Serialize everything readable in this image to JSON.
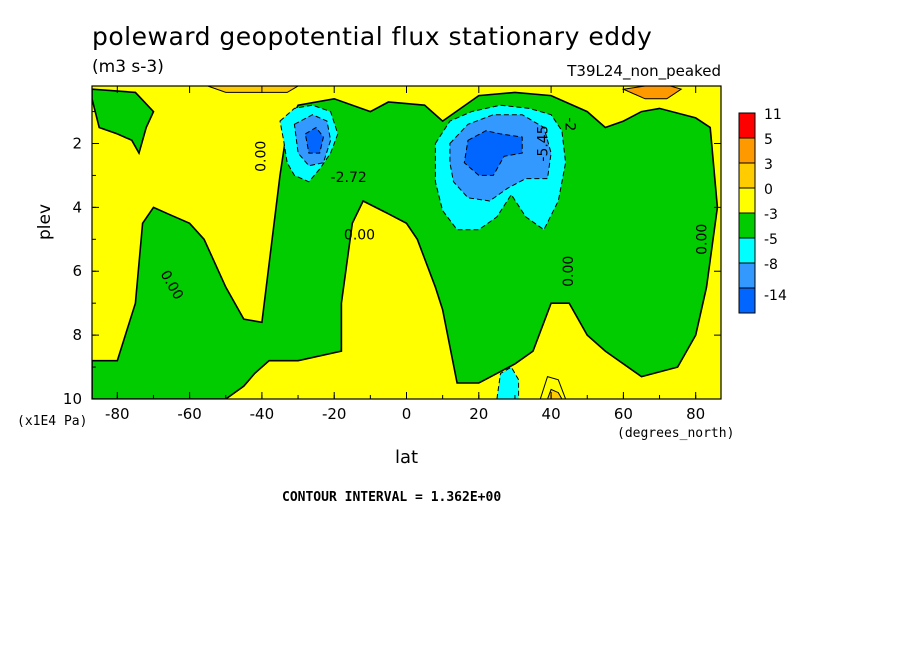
{
  "chart_data": {
    "type": "heatmap",
    "title": "poleward geopotential flux stationary eddy",
    "units": "(m3 s-3)",
    "run_label": "T39L24_non_peaked",
    "xlabel": "lat",
    "x_unit": "(degrees_north)",
    "ylabel": "plev",
    "y_unit": "(x1E4 Pa)",
    "contour_interval": "CONTOUR INTERVAL = 1.362E+00",
    "xlim": [
      -87,
      87
    ],
    "ylim": [
      10,
      0.2
    ],
    "x_ticks": [
      "-80",
      "-60",
      "-40",
      "-20",
      "0",
      "20",
      "40",
      "60",
      "80"
    ],
    "y_ticks": [
      "2",
      "4",
      "6",
      "8",
      "10"
    ],
    "contour_labels": [
      {
        "text": "0.00",
        "lat": -39,
        "plev": 2.4,
        "rotate": -90
      },
      {
        "text": "-2.72",
        "lat": -16,
        "plev": 3.2,
        "rotate": 0
      },
      {
        "text": "0.00",
        "lat": -13,
        "plev": 5.0,
        "rotate": 0
      },
      {
        "text": "0.00",
        "lat": -66,
        "plev": 6.5,
        "rotate": 60
      },
      {
        "text": "-5.45",
        "lat": 39,
        "plev": 2.0,
        "rotate": -90
      },
      {
        "text": "-2",
        "lat": 44,
        "plev": 1.4,
        "rotate": 90
      },
      {
        "text": "0.00",
        "lat": 46,
        "plev": 6.0,
        "rotate": -90
      },
      {
        "text": "0.00",
        "lat": 83,
        "plev": 5.0,
        "rotate": -90
      }
    ],
    "colorbar": {
      "levels": [
        "11",
        "5",
        "3",
        "0",
        "-3",
        "-5",
        "-8",
        "-14"
      ],
      "colors": [
        "#ff0000",
        "#ff9900",
        "#ffcc00",
        "#ffff00",
        "#00cc00",
        "#00ffff",
        "#3399ff",
        "#0066ff"
      ]
    },
    "background_fill": "#ffff00",
    "regions": [
      {
        "level": "0 to -3",
        "color": "#00cc00",
        "points": [
          [
            -80,
            8.8
          ],
          [
            -75,
            7.0
          ],
          [
            -73,
            4.5
          ],
          [
            -70,
            4.0
          ],
          [
            -66,
            4.2
          ],
          [
            -60,
            4.5
          ],
          [
            -56,
            5.0
          ],
          [
            -50,
            6.5
          ],
          [
            -45,
            7.5
          ],
          [
            -40,
            7.6
          ],
          [
            -35,
            3.0
          ],
          [
            -33,
            1.5
          ],
          [
            -30,
            0.8
          ],
          [
            -20,
            0.6
          ],
          [
            -10,
            1.0
          ],
          [
            -5,
            0.7
          ],
          [
            5,
            0.8
          ],
          [
            10,
            1.3
          ],
          [
            20,
            0.5
          ],
          [
            30,
            0.4
          ],
          [
            40,
            0.5
          ],
          [
            50,
            1.0
          ],
          [
            55,
            1.5
          ],
          [
            60,
            1.3
          ],
          [
            65,
            1.0
          ],
          [
            70,
            0.9
          ],
          [
            80,
            1.2
          ],
          [
            84,
            1.5
          ],
          [
            86,
            4.0
          ],
          [
            83,
            6.5
          ],
          [
            80,
            8.0
          ],
          [
            75,
            9.0
          ],
          [
            65,
            9.3
          ],
          [
            55,
            8.5
          ],
          [
            50,
            8.0
          ],
          [
            45,
            7.0
          ],
          [
            40,
            7.0
          ],
          [
            35,
            8.5
          ],
          [
            30,
            8.9
          ],
          [
            25,
            9.2
          ],
          [
            20,
            9.5
          ],
          [
            14,
            9.5
          ],
          [
            10,
            7.2
          ],
          [
            8,
            6.5
          ],
          [
            3,
            5.0
          ],
          [
            0,
            4.5
          ],
          [
            -5,
            4.2
          ],
          [
            -12,
            3.8
          ],
          [
            -15,
            4.5
          ],
          [
            -18,
            7.0
          ],
          [
            -18,
            8.5
          ],
          [
            -30,
            8.8
          ],
          [
            -38,
            8.8
          ],
          [
            -42,
            9.2
          ],
          [
            -45,
            9.6
          ],
          [
            -50,
            10
          ],
          [
            -60,
            10
          ],
          [
            -70,
            10
          ],
          [
            -80,
            10
          ],
          [
            -87,
            10
          ],
          [
            -87,
            8.8
          ]
        ]
      },
      {
        "level": "0 to -3",
        "color": "#00cc00",
        "points": [
          [
            -87,
            0.6
          ],
          [
            -85,
            1.5
          ],
          [
            -80,
            1.7
          ],
          [
            -76,
            1.9
          ],
          [
            -74,
            2.3
          ],
          [
            -72,
            1.5
          ],
          [
            -70,
            1.0
          ],
          [
            -75,
            0.4
          ],
          [
            -87,
            0.3
          ]
        ]
      },
      {
        "level": "-3 to -5",
        "color": "#00ffff",
        "points": [
          [
            -35,
            1.3
          ],
          [
            -31,
            0.9
          ],
          [
            -26,
            0.8
          ],
          [
            -21,
            1.0
          ],
          [
            -19,
            1.7
          ],
          [
            -21,
            2.3
          ],
          [
            -24,
            2.8
          ],
          [
            -27,
            3.2
          ],
          [
            -31,
            3.0
          ],
          [
            -33,
            2.6
          ],
          [
            -34,
            1.9
          ]
        ]
      },
      {
        "level": "-5 to -8",
        "color": "#3399ff",
        "points": [
          [
            -31,
            1.4
          ],
          [
            -26,
            1.1
          ],
          [
            -22,
            1.3
          ],
          [
            -21,
            1.9
          ],
          [
            -23,
            2.6
          ],
          [
            -27,
            2.7
          ],
          [
            -30,
            2.3
          ]
        ]
      },
      {
        "level": "-8 to -14",
        "color": "#0066ff",
        "points": [
          [
            -28,
            1.7
          ],
          [
            -25,
            1.5
          ],
          [
            -23,
            1.8
          ],
          [
            -24,
            2.3
          ],
          [
            -27,
            2.3
          ]
        ]
      },
      {
        "level": "-3 to -5",
        "color": "#00ffff",
        "points": [
          [
            8,
            2.0
          ],
          [
            12,
            1.3
          ],
          [
            18,
            1.0
          ],
          [
            26,
            0.8
          ],
          [
            34,
            0.9
          ],
          [
            40,
            1.1
          ],
          [
            43,
            1.6
          ],
          [
            44,
            2.6
          ],
          [
            42,
            3.8
          ],
          [
            38,
            4.7
          ],
          [
            33,
            4.3
          ],
          [
            29,
            3.6
          ],
          [
            25,
            4.3
          ],
          [
            20,
            4.7
          ],
          [
            14,
            4.7
          ],
          [
            10,
            4.1
          ],
          [
            8,
            3.2
          ]
        ]
      },
      {
        "level": "-5 to -8",
        "color": "#3399ff",
        "points": [
          [
            12,
            2.0
          ],
          [
            17,
            1.4
          ],
          [
            24,
            1.1
          ],
          [
            32,
            1.1
          ],
          [
            38,
            1.5
          ],
          [
            40,
            2.3
          ],
          [
            39,
            3.1
          ],
          [
            33,
            3.1
          ],
          [
            28,
            3.4
          ],
          [
            23,
            3.8
          ],
          [
            17,
            3.7
          ],
          [
            13,
            3.2
          ],
          [
            12,
            2.6
          ]
        ]
      },
      {
        "level": "-8 to -14",
        "color": "#0066ff",
        "points": [
          [
            17,
            1.9
          ],
          [
            22,
            1.6
          ],
          [
            26,
            1.7
          ],
          [
            32,
            1.8
          ],
          [
            32,
            2.3
          ],
          [
            27,
            2.4
          ],
          [
            24,
            3.0
          ],
          [
            20,
            3.0
          ],
          [
            16,
            2.6
          ]
        ]
      },
      {
        "level": "-3 to -5",
        "color": "#00ffff",
        "points": [
          [
            25,
            10
          ],
          [
            26,
            9.2
          ],
          [
            29,
            9.0
          ],
          [
            31,
            9.4
          ],
          [
            31,
            10
          ]
        ]
      },
      {
        "level": "0 to 3",
        "color": "#ffff00",
        "points": [
          [
            37,
            10
          ],
          [
            39,
            9.3
          ],
          [
            42,
            9.4
          ],
          [
            44,
            10
          ]
        ]
      },
      {
        "level": "3 to 5",
        "color": "#ffcc00",
        "points": [
          [
            39,
            10
          ],
          [
            40,
            9.7
          ],
          [
            42,
            9.8
          ],
          [
            43,
            10
          ]
        ]
      },
      {
        "level": "3 to 5",
        "color": "#ff9900",
        "points": [
          [
            60,
            0.3
          ],
          [
            66,
            0.2
          ],
          [
            73,
            0.2
          ],
          [
            76,
            0.3
          ],
          [
            72,
            0.6
          ],
          [
            66,
            0.6
          ]
        ]
      },
      {
        "level": "0 to 3",
        "color": "#ffcc00",
        "points": [
          [
            -55,
            0.2
          ],
          [
            -30,
            0.2
          ],
          [
            -33,
            0.4
          ],
          [
            -50,
            0.4
          ]
        ]
      }
    ]
  }
}
